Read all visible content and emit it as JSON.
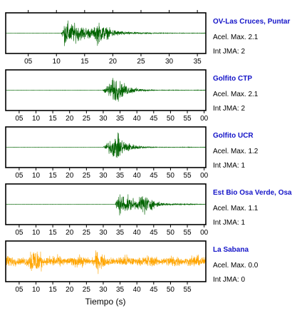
{
  "chart_data": {
    "type": "line",
    "xlabel": "Tiempo (s)",
    "panels": [
      {
        "station": "OV-Las Cruces, Puntar",
        "accel_label": "Acel. Max. 2.1",
        "jma_label": "Int JMA: 2",
        "color": "#006400",
        "xlim": [
          1,
          36.5
        ],
        "ticks": [
          "05",
          "10",
          "15",
          "20",
          "25",
          "30",
          "35"
        ],
        "tick_values": [
          5,
          10,
          15,
          20,
          25,
          30,
          35
        ],
        "onset": 10.8,
        "peak_time": 11.5,
        "amplitude": 0.95,
        "decay": 5.0,
        "bursts": [
          [
            17.3,
            0.85,
            2.5
          ]
        ]
      },
      {
        "station": "Golfito CTP",
        "accel_label": "Acel. Max. 2.1",
        "jma_label": "Int JMA: 2",
        "color": "#006400",
        "xlim": [
          1,
          60.5
        ],
        "ticks": [
          "05",
          "10",
          "15",
          "20",
          "25",
          "30",
          "35",
          "40",
          "45",
          "50",
          "55",
          "00"
        ],
        "tick_values": [
          5,
          10,
          15,
          20,
          25,
          30,
          35,
          40,
          45,
          50,
          55,
          60
        ],
        "onset": 29.8,
        "peak_time": 33.5,
        "amplitude": 1.0,
        "decay": 3.5,
        "bursts": []
      },
      {
        "station": "Golfito UCR",
        "accel_label": "Acel. Max. 1.2",
        "jma_label": "Int JMA: 1",
        "color": "#006400",
        "xlim": [
          1,
          60.5
        ],
        "ticks": [
          "05",
          "10",
          "15",
          "20",
          "25",
          "30",
          "35",
          "40",
          "45",
          "50",
          "55",
          "00"
        ],
        "tick_values": [
          5,
          10,
          15,
          20,
          25,
          30,
          35,
          40,
          45,
          50,
          55,
          60
        ],
        "onset": 29.8,
        "peak_time": 34.0,
        "amplitude": 1.0,
        "decay": 3.2,
        "bursts": []
      },
      {
        "station": "Est Bio Osa Verde, Osa",
        "accel_label": "Acel. Max. 1.1",
        "jma_label": "Int JMA: 1",
        "color": "#006400",
        "xlim": [
          1,
          60.5
        ],
        "ticks": [
          "05",
          "10",
          "15",
          "20",
          "25",
          "30",
          "35",
          "40",
          "45",
          "50",
          "55",
          "00"
        ],
        "tick_values": [
          5,
          10,
          15,
          20,
          25,
          30,
          35,
          40,
          45,
          50,
          55,
          60
        ],
        "onset": 33.5,
        "peak_time": 34.5,
        "amplitude": 0.85,
        "decay": 6.5,
        "bursts": [
          [
            41.5,
            1.0,
            3.0
          ]
        ]
      },
      {
        "station": "La Sabana",
        "accel_label": "Acel. Max. 0.0",
        "jma_label": "Int JMA: 0",
        "color": "#ffa500",
        "xlim": [
          1,
          60.5
        ],
        "ticks": [
          "05",
          "10",
          "15",
          "20",
          "25",
          "30",
          "35",
          "40",
          "45",
          "50",
          "55"
        ],
        "tick_values": [
          5,
          10,
          15,
          20,
          25,
          30,
          35,
          40,
          45,
          50,
          55
        ],
        "onset": 1,
        "peak_time": 9.5,
        "amplitude": 1.0,
        "decay": 0,
        "bursts": []
      }
    ]
  }
}
